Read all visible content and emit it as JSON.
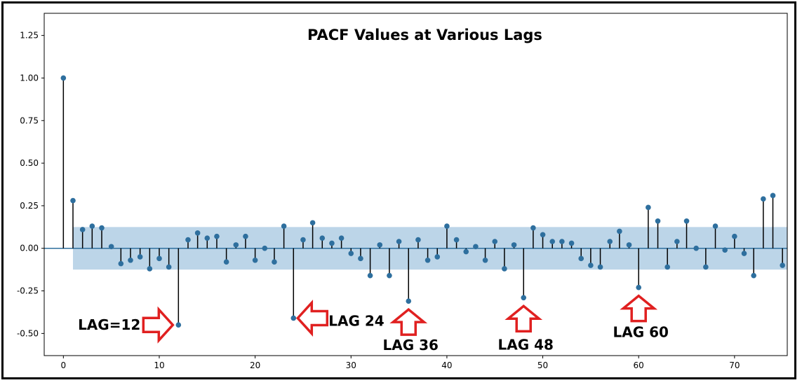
{
  "chart_data": {
    "type": "stem",
    "title": "PACF Values at Various Lags",
    "xlabel": "",
    "ylabel": "",
    "xlim": [
      -2,
      75.5
    ],
    "ylim": [
      -0.63,
      1.38
    ],
    "x_ticks": [
      0,
      10,
      20,
      30,
      40,
      50,
      60,
      70
    ],
    "y_ticks": [
      -0.5,
      -0.25,
      0.0,
      0.25,
      0.5,
      0.75,
      1.0,
      1.25
    ],
    "x_tick_labels": [
      "0",
      "10",
      "20",
      "30",
      "40",
      "50",
      "60",
      "70"
    ],
    "y_tick_labels": [
      "-0.50",
      "-0.25",
      "0.00",
      "0.25",
      "0.50",
      "0.75",
      "1.00",
      "1.25"
    ],
    "confidence_band": {
      "x_start": 1,
      "x_end": 75.5,
      "lower": -0.125,
      "upper": 0.125,
      "color": "#bcd5e8"
    },
    "stem_color": "#000000",
    "marker_color": "#2e6f9e",
    "baseline_color": "#2e6f9e",
    "lags": [
      0,
      1,
      2,
      3,
      4,
      5,
      6,
      7,
      8,
      9,
      10,
      11,
      12,
      13,
      14,
      15,
      16,
      17,
      18,
      19,
      20,
      21,
      22,
      23,
      24,
      25,
      26,
      27,
      28,
      29,
      30,
      31,
      32,
      33,
      34,
      35,
      36,
      37,
      38,
      39,
      40,
      41,
      42,
      43,
      44,
      45,
      46,
      47,
      48,
      49,
      50,
      51,
      52,
      53,
      54,
      55,
      56,
      57,
      58,
      59,
      60,
      61,
      62,
      63,
      64,
      65,
      66,
      67,
      68,
      69,
      70,
      71,
      72,
      73,
      74,
      75
    ],
    "values": [
      1.0,
      0.28,
      0.11,
      0.13,
      0.12,
      0.01,
      -0.09,
      -0.07,
      -0.05,
      -0.12,
      -0.06,
      -0.11,
      -0.45,
      0.05,
      0.09,
      0.06,
      0.07,
      -0.08,
      0.02,
      0.07,
      -0.07,
      0.0,
      -0.08,
      0.13,
      -0.41,
      0.05,
      0.15,
      0.06,
      0.03,
      0.06,
      -0.03,
      -0.06,
      -0.16,
      0.02,
      -0.16,
      0.04,
      -0.31,
      0.05,
      -0.07,
      -0.05,
      0.13,
      0.05,
      -0.02,
      0.01,
      -0.07,
      0.04,
      -0.12,
      0.02,
      -0.29,
      0.12,
      0.08,
      0.04,
      0.04,
      0.03,
      -0.06,
      -0.1,
      -0.11,
      0.04,
      0.1,
      0.02,
      -0.23,
      0.24,
      0.16,
      -0.11,
      0.04,
      0.16,
      0.0,
      -0.11,
      0.13,
      -0.01,
      0.07,
      -0.03,
      -0.16,
      0.29,
      0.31,
      -0.1
    ],
    "annotations": [
      {
        "text": "LAG=12",
        "lag": 12,
        "arrow": "right"
      },
      {
        "text": "LAG 24",
        "lag": 24,
        "arrow": "left"
      },
      {
        "text": "LAG 36",
        "lag": 36,
        "arrow": "up"
      },
      {
        "text": "LAG 48",
        "lag": 48,
        "arrow": "up"
      },
      {
        "text": "LAG 60",
        "lag": 60,
        "arrow": "up"
      }
    ],
    "arrow_color": "#e02020"
  }
}
